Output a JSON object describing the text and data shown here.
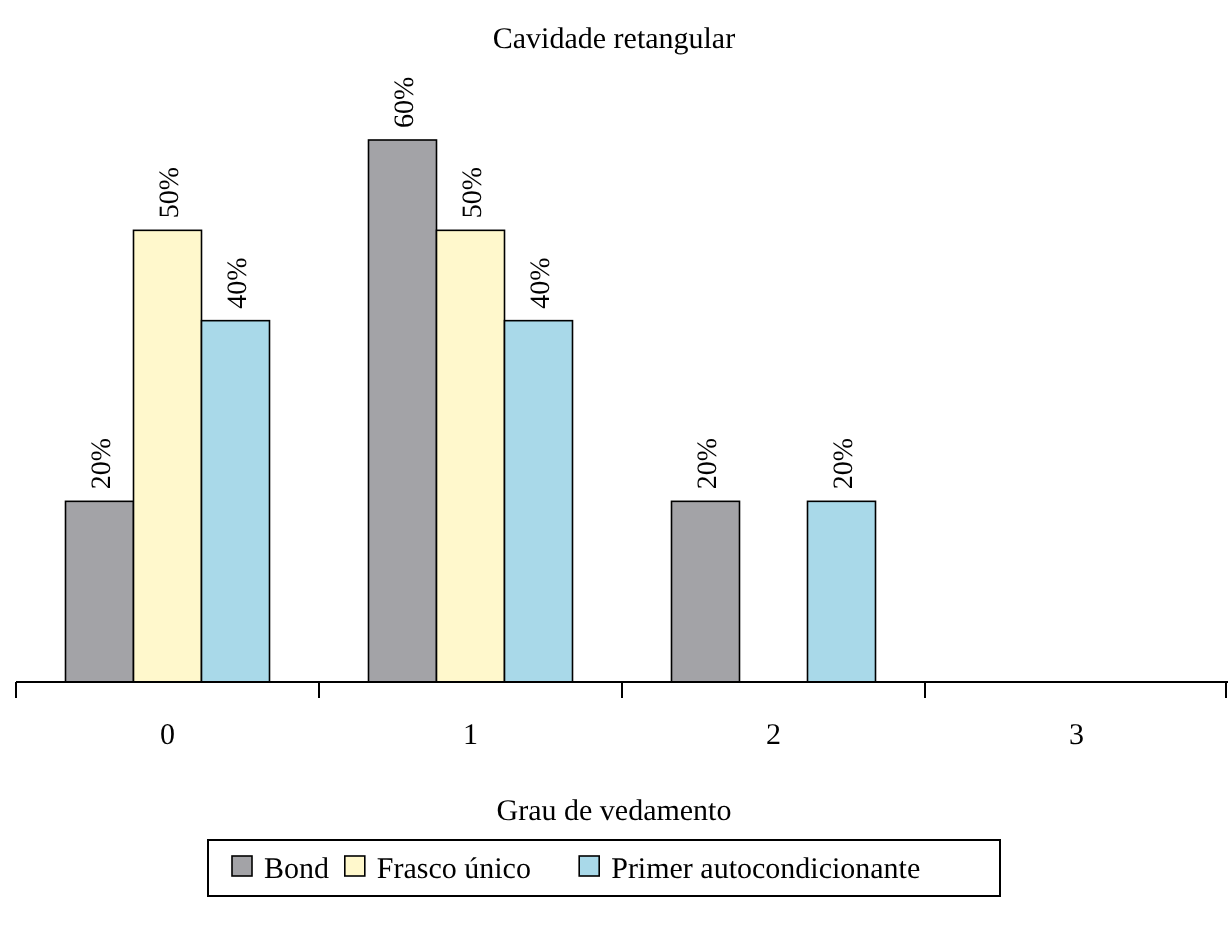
{
  "chart_data": {
    "type": "bar",
    "title": "Cavidade retangular",
    "xlabel": "Grau de vedamento",
    "categories": [
      "0",
      "1",
      "2",
      "3"
    ],
    "series": [
      {
        "name": "Bond",
        "color": "#a3a3a7",
        "values": [
          20,
          60,
          20,
          null
        ],
        "value_labels": [
          "20%",
          "60%",
          "20%",
          null
        ]
      },
      {
        "name": "Frasco único",
        "color": "#fff8cc",
        "values": [
          50,
          50,
          null,
          null
        ],
        "value_labels": [
          "50%",
          "50%",
          null,
          null
        ]
      },
      {
        "name": "Primer autocondicionante",
        "color": "#a9d9e9",
        "values": [
          40,
          40,
          20,
          null
        ],
        "value_labels": [
          "40%",
          "40%",
          "20%",
          null
        ]
      }
    ],
    "legend": "bottom"
  }
}
